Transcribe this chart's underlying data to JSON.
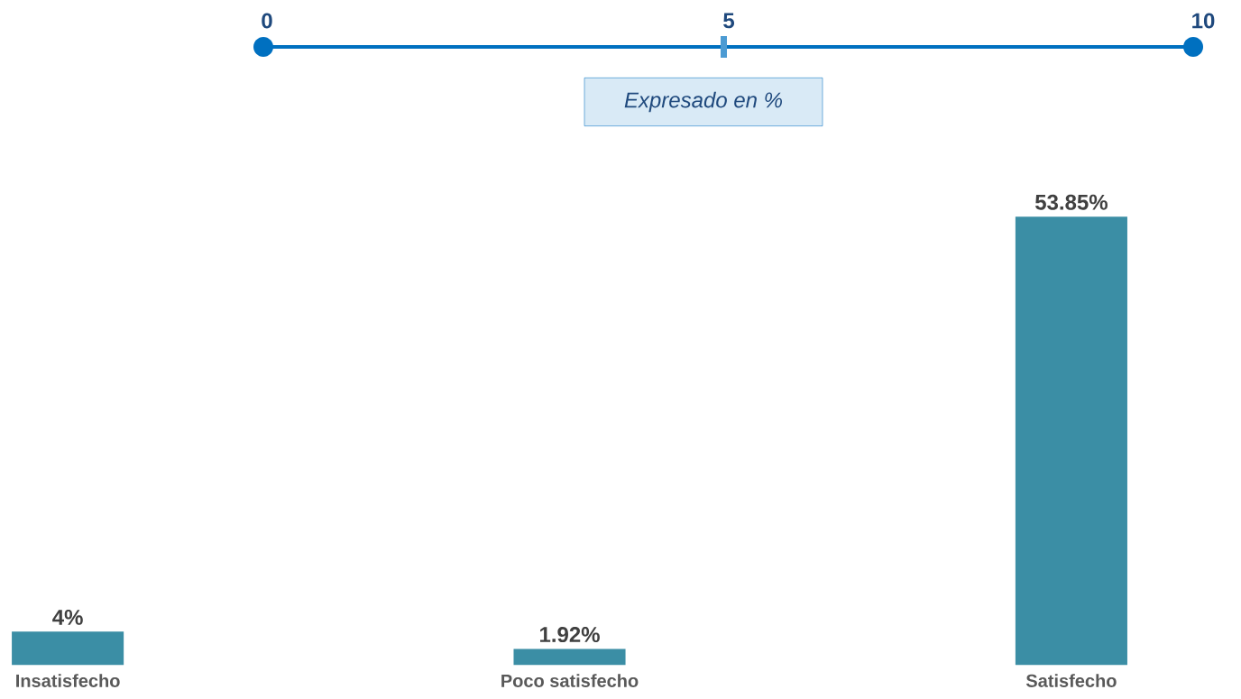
{
  "chart_data": {
    "type": "bar",
    "categories": [
      "Insatisfecho",
      "Poco satisfecho",
      "Satisfecho"
    ],
    "values": [
      4,
      1.92,
      53.85
    ],
    "value_labels": [
      "4%",
      "1.92%",
      "53.85%"
    ],
    "color": "#3b8ea5",
    "annotations": [
      "0",
      "5",
      "10",
      "Expresado en %"
    ]
  }
}
